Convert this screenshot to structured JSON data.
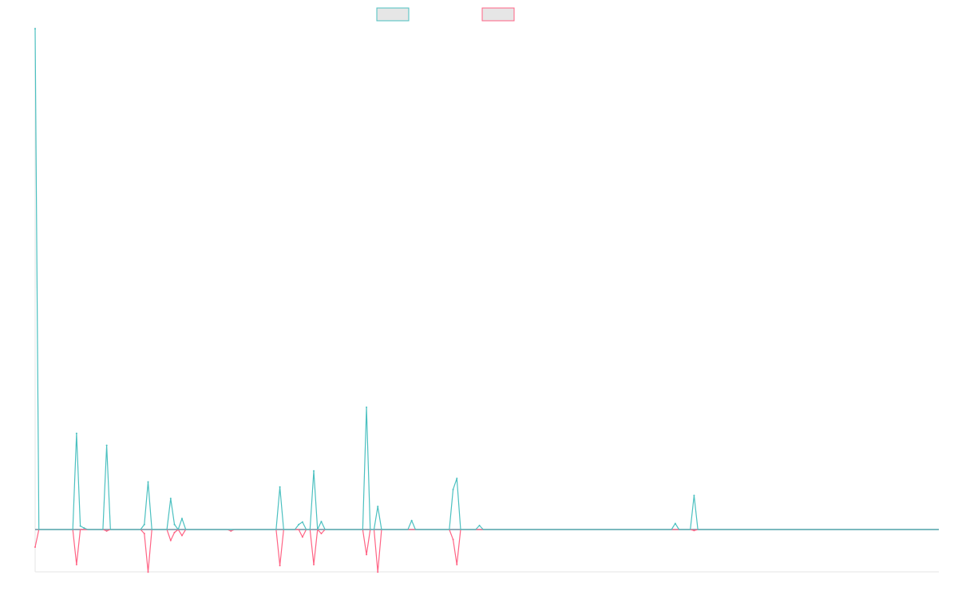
{
  "chart_data": {
    "type": "line",
    "title": "",
    "xlabel": "",
    "ylabel": "",
    "grid": false,
    "legend": "top-center",
    "colors": {
      "series_a": "#4bc0c0",
      "series_b": "#ff6384",
      "baseline": "#6b8fa0",
      "axis": "#e5e5e5"
    },
    "x_count": 241,
    "ylim": [
      -0.085,
      1.0
    ],
    "series": [
      {
        "key": "a",
        "values": [
          {
            "i": 0,
            "v": 1.0
          },
          {
            "i": 1,
            "v": 0
          },
          {
            "i": 11,
            "v": 0.192
          },
          {
            "i": 12,
            "v": 0.007
          },
          {
            "i": 13,
            "v": 0.003
          },
          {
            "i": 19,
            "v": 0.168
          },
          {
            "i": 29,
            "v": 0.01
          },
          {
            "i": 30,
            "v": 0.095
          },
          {
            "i": 36,
            "v": 0.062
          },
          {
            "i": 37,
            "v": 0.01
          },
          {
            "i": 39,
            "v": 0.022
          },
          {
            "i": 65,
            "v": 0.085
          },
          {
            "i": 70,
            "v": 0.01
          },
          {
            "i": 71,
            "v": 0.015
          },
          {
            "i": 74,
            "v": 0.117
          },
          {
            "i": 76,
            "v": 0.016
          },
          {
            "i": 88,
            "v": 0.244
          },
          {
            "i": 91,
            "v": 0.046
          },
          {
            "i": 100,
            "v": 0.018
          },
          {
            "i": 111,
            "v": 0.08
          },
          {
            "i": 112,
            "v": 0.102
          },
          {
            "i": 118,
            "v": 0.008
          },
          {
            "i": 170,
            "v": 0.012
          },
          {
            "i": 175,
            "v": 0.068
          }
        ]
      },
      {
        "key": "b",
        "values": [
          {
            "i": 0,
            "v": -0.035
          },
          {
            "i": 1,
            "v": 0
          },
          {
            "i": 11,
            "v": -0.07
          },
          {
            "i": 19,
            "v": -0.003
          },
          {
            "i": 29,
            "v": -0.008
          },
          {
            "i": 30,
            "v": -0.085
          },
          {
            "i": 36,
            "v": -0.022
          },
          {
            "i": 37,
            "v": -0.006
          },
          {
            "i": 39,
            "v": -0.012
          },
          {
            "i": 52,
            "v": -0.003
          },
          {
            "i": 65,
            "v": -0.072
          },
          {
            "i": 71,
            "v": -0.015
          },
          {
            "i": 74,
            "v": -0.07
          },
          {
            "i": 76,
            "v": -0.008
          },
          {
            "i": 88,
            "v": -0.05
          },
          {
            "i": 91,
            "v": -0.085
          },
          {
            "i": 111,
            "v": -0.02
          },
          {
            "i": 112,
            "v": -0.07
          },
          {
            "i": 175,
            "v": -0.002
          }
        ]
      }
    ]
  }
}
